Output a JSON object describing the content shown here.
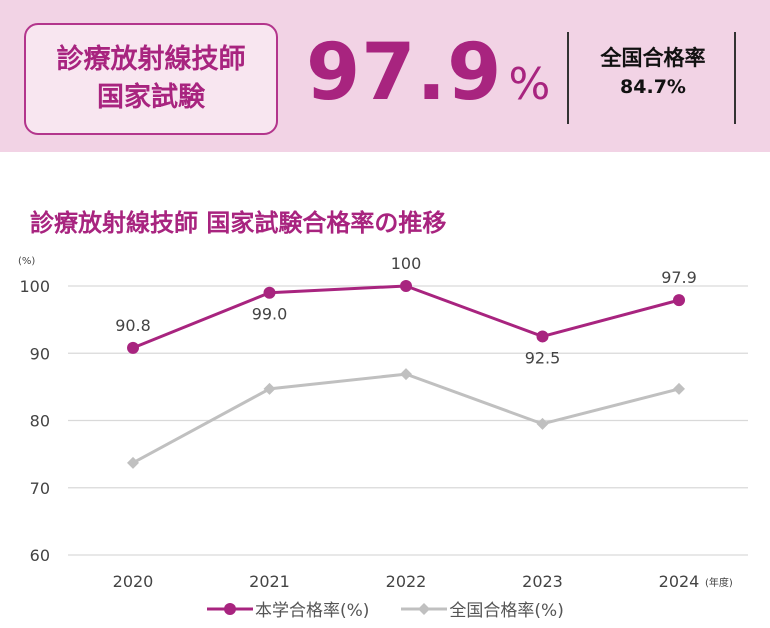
{
  "header": {
    "exam_line1": "診療放射線技師",
    "exam_line2": "国家試験",
    "rate_value": "97.9",
    "rate_unit": "%",
    "national_label": "全国合格率",
    "national_value": "84.7%"
  },
  "chart_data": {
    "type": "line",
    "title": "診療放射線技師  国家試験合格率の推移",
    "ylabel": "(%)",
    "xlabel_unit": "(年度)",
    "categories": [
      "2020",
      "2021",
      "2022",
      "2023",
      "2024"
    ],
    "ylim": [
      60,
      100
    ],
    "yticks": [
      "60",
      "70",
      "80",
      "90",
      "100"
    ],
    "grid": true,
    "legend_position": "bottom",
    "series": [
      {
        "name": "本学合格率(%)",
        "color": "#a8247f",
        "marker": "circle",
        "values": [
          90.8,
          99.0,
          100,
          92.5,
          97.9
        ],
        "labels": [
          "90.8",
          "99.0",
          "100",
          "92.5",
          "97.9"
        ]
      },
      {
        "name": "全国合格率(%)",
        "color": "#c0c0c0",
        "marker": "diamond",
        "values": [
          73.7,
          84.7,
          86.9,
          79.5,
          84.7
        ]
      }
    ]
  }
}
